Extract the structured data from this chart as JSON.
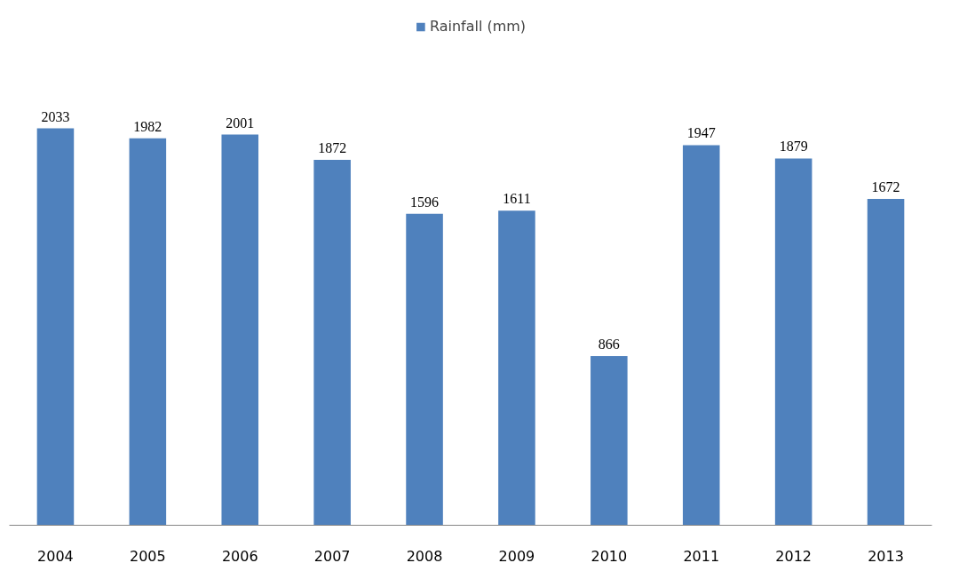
{
  "chart_data": {
    "type": "bar",
    "categories": [
      "2004",
      "2005",
      "2006",
      "2007",
      "2008",
      "2009",
      "2010",
      "2011",
      "2012",
      "2013"
    ],
    "series": [
      {
        "name": "Rainfall (mm)",
        "color": "#4f81bd",
        "values": [
          2033,
          1982,
          2001,
          1872,
          1596,
          1611,
          866,
          1947,
          1879,
          1672
        ]
      }
    ],
    "data_labels": true,
    "legend": "top",
    "grid": false
  }
}
